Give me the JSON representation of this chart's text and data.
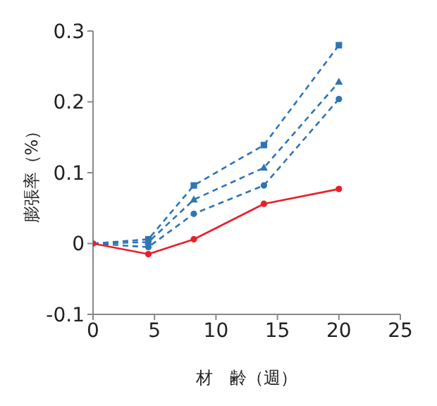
{
  "chart_data": {
    "type": "line",
    "xlabel": "材　齢（週）",
    "ylabel": "膨張率（%）",
    "x": [
      0,
      4.5,
      8.2,
      13.9,
      20
    ],
    "series": [
      {
        "color": "#2e75b6",
        "values": [
          0,
          0.006,
          0.082,
          0.139,
          0.28
        ],
        "marker": "square",
        "line_style": "dashed"
      },
      {
        "color": "#2e75b6",
        "values": [
          0,
          0.002,
          0.062,
          0.107,
          0.228
        ],
        "marker": "triangle",
        "line_style": "dashed"
      },
      {
        "color": "#2e75b6",
        "values": [
          0,
          -0.005,
          0.042,
          0.082,
          0.204
        ],
        "marker": "circle",
        "line_style": "dashed"
      },
      {
        "color": "#e8202a",
        "values": [
          0,
          -0.015,
          0.006,
          0.056,
          0.077
        ],
        "marker": "circle",
        "line_style": "solid"
      }
    ],
    "xlim": [
      0,
      25
    ],
    "xticks": [
      0,
      5,
      10,
      15,
      20,
      25
    ],
    "ylim": [
      -0.1,
      0.3
    ],
    "yticks": [
      -0.1,
      0,
      0.1,
      0.2,
      0.3
    ],
    "grid": false,
    "legend": false
  }
}
